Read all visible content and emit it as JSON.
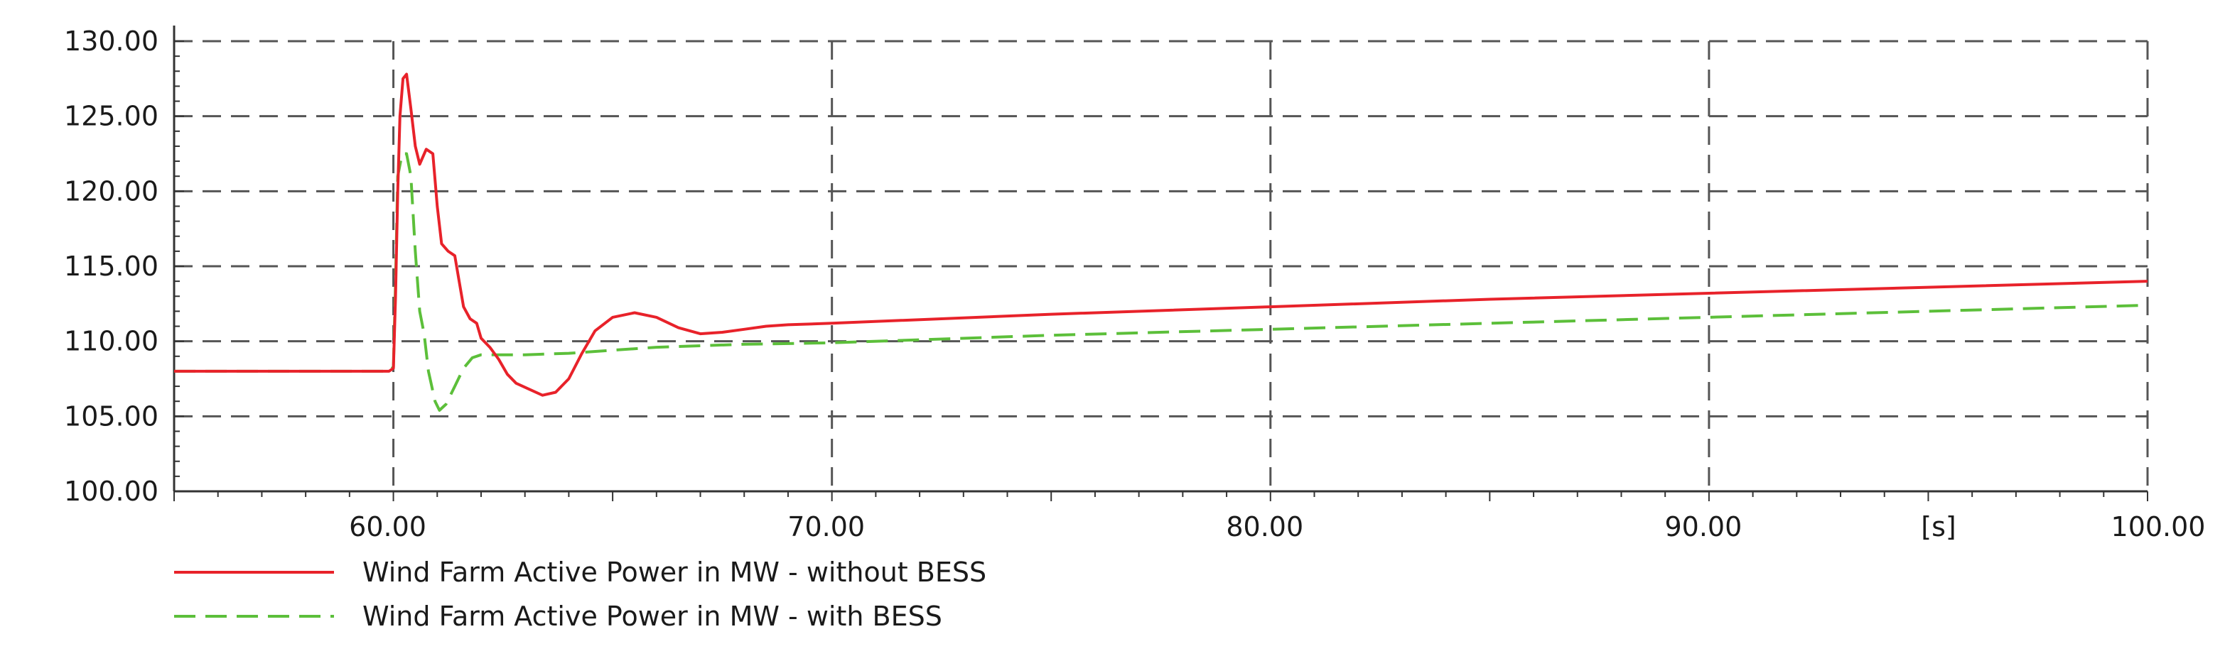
{
  "chart_data": {
    "type": "line",
    "title": "",
    "xlabel": "",
    "ylabel": "",
    "x_unit_label": "[s]",
    "xlim": [
      55,
      100
    ],
    "ylim": [
      100,
      130
    ],
    "grid": true,
    "legend_position": "bottom-left",
    "x_ticks": [
      {
        "value": 60,
        "label": "60.00"
      },
      {
        "value": 70,
        "label": "70.00"
      },
      {
        "value": 80,
        "label": "80.00"
      },
      {
        "value": 90,
        "label": "90.00"
      },
      {
        "value": 100,
        "label": "100.00"
      }
    ],
    "y_ticks": [
      {
        "value": 100,
        "label": "100.00"
      },
      {
        "value": 105,
        "label": "105.00"
      },
      {
        "value": 110,
        "label": "110.00"
      },
      {
        "value": 115,
        "label": "115.00"
      },
      {
        "value": 120,
        "label": "120.00"
      },
      {
        "value": 125,
        "label": "125.00"
      },
      {
        "value": 130,
        "label": "130.00"
      }
    ],
    "series": [
      {
        "name": "Wind Farm Active Power in MW - without BESS",
        "color": "#e8222a",
        "dash": "solid",
        "points": [
          [
            55,
            108
          ],
          [
            59.9,
            108
          ],
          [
            60.0,
            108.2
          ],
          [
            60.05,
            113
          ],
          [
            60.1,
            120
          ],
          [
            60.15,
            125
          ],
          [
            60.22,
            127.5
          ],
          [
            60.3,
            127.8
          ],
          [
            60.4,
            125.5
          ],
          [
            60.5,
            123
          ],
          [
            60.6,
            121.8
          ],
          [
            60.75,
            122.8
          ],
          [
            60.9,
            122.5
          ],
          [
            61.0,
            119
          ],
          [
            61.1,
            116.5
          ],
          [
            61.25,
            116
          ],
          [
            61.4,
            115.7
          ],
          [
            61.5,
            114
          ],
          [
            61.6,
            112.3
          ],
          [
            61.75,
            111.5
          ],
          [
            61.9,
            111.2
          ],
          [
            62.0,
            110.2
          ],
          [
            62.2,
            109.6
          ],
          [
            62.4,
            108.8
          ],
          [
            62.6,
            107.8
          ],
          [
            62.8,
            107.2
          ],
          [
            63.1,
            106.8
          ],
          [
            63.4,
            106.4
          ],
          [
            63.7,
            106.6
          ],
          [
            64.0,
            107.5
          ],
          [
            64.3,
            109.2
          ],
          [
            64.6,
            110.7
          ],
          [
            65.0,
            111.6
          ],
          [
            65.5,
            111.9
          ],
          [
            66.0,
            111.6
          ],
          [
            66.5,
            110.9
          ],
          [
            67.0,
            110.5
          ],
          [
            67.5,
            110.6
          ],
          [
            68.0,
            110.8
          ],
          [
            68.5,
            111.0
          ],
          [
            69.0,
            111.1
          ],
          [
            70.0,
            111.2
          ],
          [
            75.0,
            111.8
          ],
          [
            80.0,
            112.3
          ],
          [
            85.0,
            112.8
          ],
          [
            90.0,
            113.2
          ],
          [
            95.0,
            113.6
          ],
          [
            100.0,
            114.0
          ]
        ]
      },
      {
        "name": "Wind Farm Active Power in MW - with BESS",
        "color": "#5cbf3a",
        "dash": "dashed",
        "points": [
          [
            55,
            108
          ],
          [
            59.9,
            108
          ],
          [
            60.0,
            108.3
          ],
          [
            60.05,
            114
          ],
          [
            60.1,
            121
          ],
          [
            60.2,
            122.5
          ],
          [
            60.3,
            122.5
          ],
          [
            60.4,
            121
          ],
          [
            60.5,
            116
          ],
          [
            60.6,
            112
          ],
          [
            60.7,
            110.5
          ],
          [
            60.8,
            108
          ],
          [
            60.95,
            106
          ],
          [
            61.05,
            105.4
          ],
          [
            61.2,
            105.8
          ],
          [
            61.4,
            107.0
          ],
          [
            61.6,
            108.2
          ],
          [
            61.8,
            108.9
          ],
          [
            62.0,
            109.1
          ],
          [
            62.5,
            109.1
          ],
          [
            63.0,
            109.1
          ],
          [
            64.0,
            109.2
          ],
          [
            65.0,
            109.4
          ],
          [
            66.0,
            109.6
          ],
          [
            68.0,
            109.8
          ],
          [
            70.0,
            109.9
          ],
          [
            75.0,
            110.4
          ],
          [
            80.0,
            110.8
          ],
          [
            85.0,
            111.2
          ],
          [
            90.0,
            111.6
          ],
          [
            95.0,
            112.0
          ],
          [
            100.0,
            112.4
          ]
        ]
      }
    ]
  }
}
